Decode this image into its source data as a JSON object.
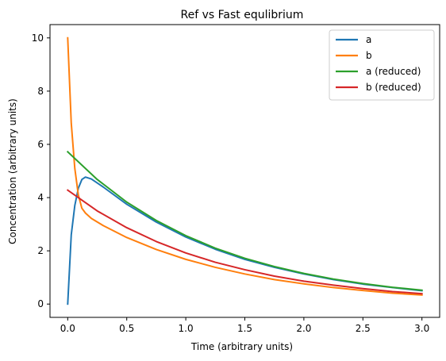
{
  "chart_data": {
    "type": "line",
    "title": "Ref vs Fast equlibrium",
    "xlabel": "Time (arbitrary units)",
    "ylabel": "Concentration (arbitrary units)",
    "xlim": [
      -0.15,
      3.15
    ],
    "ylim": [
      -0.5,
      10.5
    ],
    "xticks": [
      "0.0",
      "0.5",
      "1.0",
      "1.5",
      "2.0",
      "2.5",
      "3.0"
    ],
    "yticks": [
      "0",
      "2",
      "4",
      "6",
      "8",
      "10"
    ],
    "grid": false,
    "legend_position": "top-right",
    "series": [
      {
        "name": "a",
        "color": "#1f77b4",
        "x": [
          0.0,
          0.03,
          0.06,
          0.09,
          0.12,
          0.15,
          0.2,
          0.3,
          0.5,
          0.75,
          1.0,
          1.25,
          1.5,
          1.75,
          2.0,
          2.25,
          2.5,
          2.75,
          3.0
        ],
        "y": [
          0.0,
          2.6,
          3.7,
          4.35,
          4.68,
          4.77,
          4.7,
          4.4,
          3.75,
          3.08,
          2.52,
          2.06,
          1.68,
          1.38,
          1.13,
          0.92,
          0.75,
          0.62,
          0.5
        ]
      },
      {
        "name": "b",
        "color": "#ff7f0e",
        "x": [
          0.0,
          0.03,
          0.06,
          0.09,
          0.12,
          0.15,
          0.2,
          0.3,
          0.5,
          0.75,
          1.0,
          1.25,
          1.5,
          1.75,
          2.0,
          2.25,
          2.5,
          2.75,
          3.0
        ],
        "y": [
          10.0,
          6.8,
          5.1,
          4.1,
          3.6,
          3.42,
          3.22,
          2.95,
          2.5,
          2.05,
          1.68,
          1.38,
          1.13,
          0.92,
          0.76,
          0.62,
          0.51,
          0.41,
          0.34
        ]
      },
      {
        "name": "a (reduced)",
        "color": "#2ca02c",
        "x": [
          0.0,
          0.25,
          0.5,
          0.75,
          1.0,
          1.25,
          1.5,
          1.75,
          2.0,
          2.25,
          2.5,
          2.75,
          3.0
        ],
        "y": [
          5.72,
          4.68,
          3.83,
          3.14,
          2.57,
          2.1,
          1.72,
          1.41,
          1.15,
          0.94,
          0.77,
          0.63,
          0.52
        ]
      },
      {
        "name": "b (reduced)",
        "color": "#d62728",
        "x": [
          0.0,
          0.25,
          0.5,
          0.75,
          1.0,
          1.25,
          1.5,
          1.75,
          2.0,
          2.25,
          2.5,
          2.75,
          3.0
        ],
        "y": [
          4.28,
          3.5,
          2.87,
          2.35,
          1.92,
          1.57,
          1.29,
          1.05,
          0.86,
          0.71,
          0.58,
          0.47,
          0.39
        ]
      }
    ]
  }
}
